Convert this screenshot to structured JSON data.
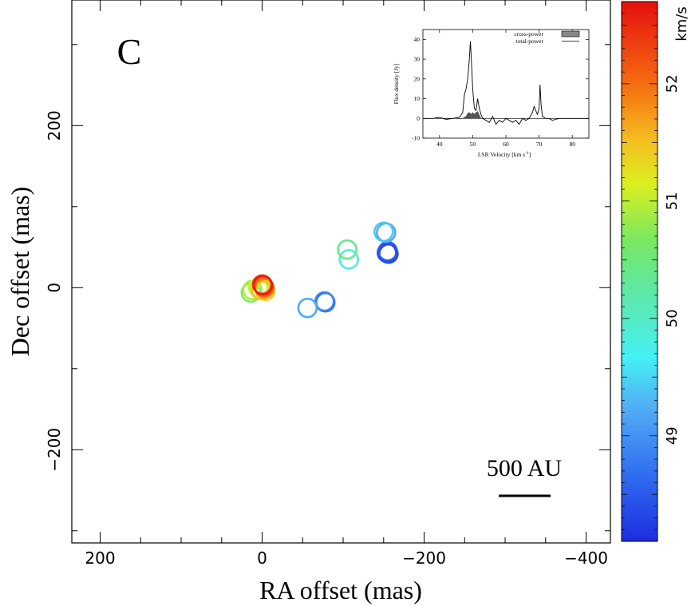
{
  "chart_data": [
    {
      "type": "scatter",
      "panel_label": "C",
      "xlabel": "RA offset (mas)",
      "ylabel": "Dec offset (mas)",
      "xlim": [
        235,
        -430
      ],
      "ylim": [
        -315,
        355
      ],
      "xticks": [
        200,
        0,
        -200,
        -400
      ],
      "xtick_labels": [
        "200",
        "0",
        "−200",
        "−400"
      ],
      "yticks": [
        200,
        0,
        -200
      ],
      "ytick_labels": [
        "200",
        "0",
        "−200"
      ],
      "scale_bar": {
        "label": "500 AU",
        "length_mas": 65
      },
      "spots": [
        {
          "x": -1,
          "y": 3,
          "v": 52.6
        },
        {
          "x": 0,
          "y": 4,
          "v": 52.4
        },
        {
          "x": -2,
          "y": 1,
          "v": 52.1
        },
        {
          "x": -3,
          "y": -1,
          "v": 51.8
        },
        {
          "x": 1,
          "y": -3,
          "v": 51.5
        },
        {
          "x": -4,
          "y": -4,
          "v": 51.3
        },
        {
          "x": 5,
          "y": 0,
          "v": 51.1
        },
        {
          "x": 12,
          "y": -3,
          "v": 50.9
        },
        {
          "x": 14,
          "y": -6,
          "v": 50.7
        },
        {
          "x": 3,
          "y": -2,
          "v": 51.0
        },
        {
          "x": -105,
          "y": 47,
          "v": 50.4
        },
        {
          "x": -107,
          "y": 35,
          "v": 49.8
        },
        {
          "x": -150,
          "y": 69,
          "v": 49.4
        },
        {
          "x": -153,
          "y": 68,
          "v": 49.2
        },
        {
          "x": -155,
          "y": 45,
          "v": 48.5
        },
        {
          "x": -156,
          "y": 42,
          "v": 48.3
        },
        {
          "x": -154,
          "y": 43,
          "v": 48.4
        },
        {
          "x": -78,
          "y": -18,
          "v": 48.6
        },
        {
          "x": -77,
          "y": -17,
          "v": 48.9
        },
        {
          "x": -56,
          "y": -25,
          "v": 49.2
        }
      ]
    },
    {
      "type": "line",
      "title": "",
      "xlabel": "LSR Velocity [km s⁻¹]",
      "ylabel": "Flux density [Jy]",
      "xlim": [
        35,
        85
      ],
      "ylim": [
        -10,
        45
      ],
      "xticks": [
        40,
        50,
        60,
        70,
        80
      ],
      "yticks": [
        -10,
        0,
        10,
        20,
        30,
        40
      ],
      "legend": [
        "cross-power",
        "total-power"
      ],
      "series": [
        {
          "name": "total-power",
          "x": [
            35,
            38,
            40,
            42,
            44,
            46,
            47,
            47.5,
            48,
            48.5,
            49,
            49.3,
            49.6,
            50,
            50.5,
            51,
            51.5,
            52,
            52.5,
            53,
            54,
            55,
            56,
            57,
            58,
            59,
            60,
            61,
            62,
            63,
            64,
            65,
            66,
            67,
            68,
            68.5,
            69,
            69.5,
            70,
            70.3,
            70.6,
            71,
            72,
            73,
            74,
            75,
            76,
            78,
            80,
            82,
            85
          ],
          "y": [
            0,
            0,
            0.5,
            -0.5,
            0,
            0.5,
            3,
            12,
            15,
            20,
            30,
            39,
            30,
            15,
            5,
            4,
            10,
            5,
            2,
            0,
            -1,
            -2,
            1,
            -3,
            -1,
            -2,
            0,
            -1,
            -2,
            -1,
            -3,
            0,
            -1,
            0,
            3,
            6,
            4,
            2,
            5,
            17,
            7,
            1,
            0,
            0,
            -1,
            -0.5,
            0,
            0,
            0,
            0,
            0
          ]
        },
        {
          "name": "cross-power",
          "x": [
            47,
            48,
            48.5,
            49,
            49.5,
            50,
            50.5,
            51,
            51.5,
            52,
            52.5
          ],
          "y": [
            0,
            1,
            2.5,
            3,
            2,
            3,
            2,
            3,
            3.5,
            1.5,
            0
          ]
        }
      ]
    }
  ],
  "colorbar": {
    "label": "km/s",
    "vmin": 48.1,
    "vmax": 52.7,
    "ticks": [
      49,
      50,
      51,
      52
    ],
    "tick_labels": [
      "49",
      "50",
      "51",
      "52"
    ]
  },
  "inset_texts": {
    "ylabel": "Flux density [Jy]",
    "xlabel": "LSR Velocity [km s",
    "xlabel_sup": "-1",
    "xlabel_end": "]"
  }
}
